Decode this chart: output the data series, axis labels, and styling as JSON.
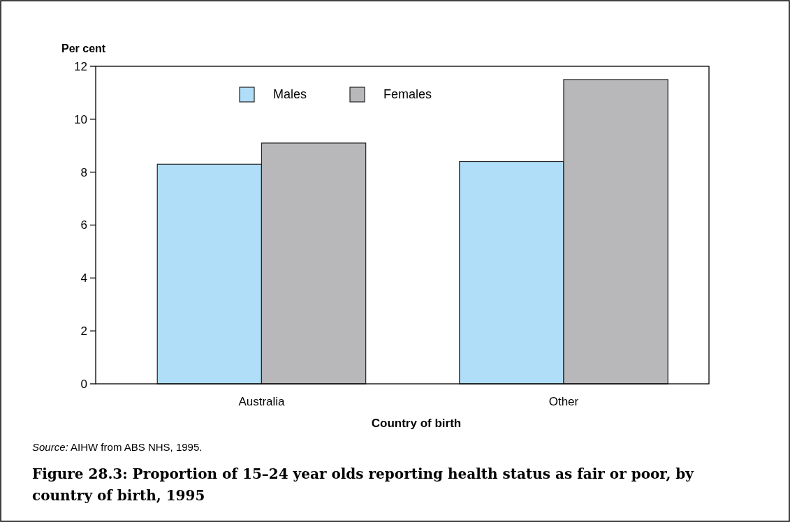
{
  "chart_data": {
    "type": "bar",
    "title": "Figure 28.3: Proportion of 15–24 year olds reporting health status as fair or poor, by country of birth, 1995",
    "xlabel": "Country of birth",
    "ylabel": "Per cent",
    "annotations": [
      "Source: AIHW from ABS NHS, 1995."
    ],
    "categories": [
      "Australia",
      "Other"
    ],
    "series": [
      {
        "name": "Males",
        "color": "#b0ddf8",
        "values": [
          8.3,
          8.4
        ]
      },
      {
        "name": "Females",
        "color": "#b8b8ba",
        "values": [
          9.1,
          11.5
        ]
      }
    ],
    "ylim": [
      0,
      12
    ],
    "yticks": [
      0,
      2,
      4,
      6,
      8,
      10,
      12
    ],
    "legend": "top",
    "grid": false
  }
}
